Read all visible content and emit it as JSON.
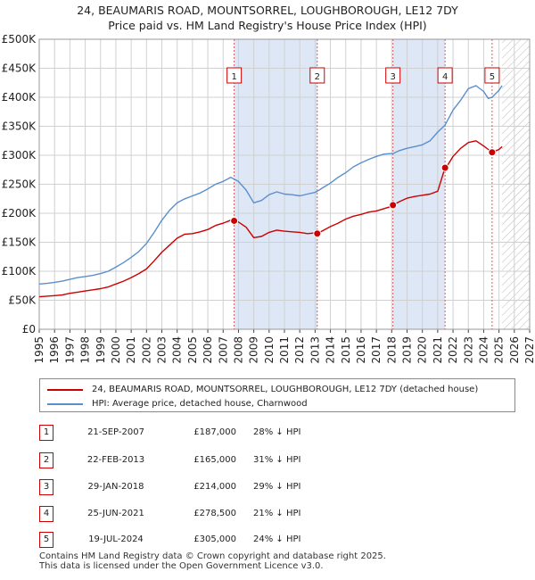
{
  "title_line1": "24, BEAUMARIS ROAD, MOUNTSORREL, LOUGHBOROUGH, LE12 7DY",
  "title_line2": "Price paid vs. HM Land Registry's House Price Index (HPI)",
  "legend": {
    "property": "24, BEAUMARIS ROAD, MOUNTSORREL, LOUGHBOROUGH, LE12 7DY (detached house)",
    "hpi": "HPI: Average price, detached house, Charnwood"
  },
  "colors": {
    "property": "#cc0000",
    "hpi": "#5b8fcc",
    "shade": "#dde7f6",
    "grid": "#d0d0d0"
  },
  "sales": [
    {
      "num": "1",
      "date": "21-SEP-2007",
      "price": "£187,000",
      "hpi": "28% ↓ HPI"
    },
    {
      "num": "2",
      "date": "22-FEB-2013",
      "price": "£165,000",
      "hpi": "31% ↓ HPI"
    },
    {
      "num": "3",
      "date": "29-JAN-2018",
      "price": "£214,000",
      "hpi": "29% ↓ HPI"
    },
    {
      "num": "4",
      "date": "25-JUN-2021",
      "price": "£278,500",
      "hpi": "21% ↓ HPI"
    },
    {
      "num": "5",
      "date": "19-JUL-2024",
      "price": "£305,000",
      "hpi": "24% ↓ HPI"
    }
  ],
  "footer_line1": "Contains HM Land Registry data © Crown copyright and database right 2025.",
  "footer_line2": "This data is licensed under the Open Government Licence v3.0.",
  "chart_data": {
    "type": "line",
    "xlim": [
      1995,
      2027
    ],
    "ylim": [
      0,
      500000
    ],
    "x_ticks": [
      "1995",
      "1996",
      "1997",
      "1998",
      "1999",
      "2000",
      "2001",
      "2002",
      "2003",
      "2004",
      "2005",
      "2006",
      "2007",
      "2008",
      "2009",
      "2010",
      "2011",
      "2012",
      "2013",
      "2014",
      "2015",
      "2016",
      "2017",
      "2018",
      "2019",
      "2020",
      "2021",
      "2022",
      "2023",
      "2024",
      "2025",
      "2026",
      "2027"
    ],
    "y_ticks": [
      {
        "value": 0,
        "label": "£0"
      },
      {
        "value": 50000,
        "label": "£50K"
      },
      {
        "value": 100000,
        "label": "£100K"
      },
      {
        "value": 150000,
        "label": "£150K"
      },
      {
        "value": 200000,
        "label": "£200K"
      },
      {
        "value": 250000,
        "label": "£250K"
      },
      {
        "value": 300000,
        "label": "£300K"
      },
      {
        "value": 350000,
        "label": "£350K"
      },
      {
        "value": 400000,
        "label": "£400K"
      },
      {
        "value": 450000,
        "label": "£450K"
      },
      {
        "value": 500000,
        "label": "£500K"
      }
    ],
    "shaded_periods": [
      [
        2007.72,
        2013.14
      ],
      [
        2018.08,
        2021.48
      ]
    ],
    "future_hatch_start": 2025.2,
    "series": [
      {
        "name": "HPI: Average price, detached house, Charnwood",
        "x": [
          1995,
          1995.5,
          1996,
          1996.5,
          1997,
          1997.5,
          1998,
          1998.5,
          1999,
          1999.5,
          2000,
          2000.5,
          2001,
          2001.5,
          2002,
          2002.5,
          2003,
          2003.5,
          2004,
          2004.5,
          2005,
          2005.5,
          2006,
          2006.5,
          2007,
          2007.5,
          2007.72,
          2008,
          2008.5,
          2009,
          2009.5,
          2010,
          2010.5,
          2011,
          2011.5,
          2012,
          2012.5,
          2013,
          2013.14,
          2013.5,
          2014,
          2014.5,
          2015,
          2015.5,
          2016,
          2016.5,
          2017,
          2017.5,
          2018,
          2018.08,
          2018.5,
          2019,
          2019.5,
          2020,
          2020.5,
          2021,
          2021.48,
          2021.7,
          2022,
          2022.5,
          2023,
          2023.5,
          2024,
          2024.3,
          2024.55,
          2025,
          2025.2
        ],
        "values": [
          78000,
          79000,
          81000,
          83000,
          86000,
          89000,
          91000,
          93000,
          96000,
          100000,
          107000,
          115000,
          124000,
          134000,
          148000,
          167000,
          188000,
          205000,
          218000,
          225000,
          230000,
          235000,
          242000,
          250000,
          255000,
          262000,
          259000,
          255000,
          240000,
          218000,
          222000,
          232000,
          237000,
          233000,
          232000,
          230000,
          233000,
          236000,
          238000,
          244000,
          252000,
          262000,
          270000,
          280000,
          287000,
          293000,
          298000,
          302000,
          303000,
          303000,
          308000,
          312000,
          315000,
          318000,
          325000,
          340000,
          352000,
          363000,
          378000,
          395000,
          415000,
          420000,
          410000,
          398000,
          400000,
          412000,
          420000
        ]
      },
      {
        "name": "24, BEAUMARIS ROAD, MOUNTSORREL, LOUGHBOROUGH, LE12 7DY (detached house)",
        "x": [
          1995,
          1995.5,
          1996,
          1996.5,
          1997,
          1997.5,
          1998,
          1998.5,
          1999,
          1999.5,
          2000,
          2000.5,
          2001,
          2001.5,
          2002,
          2002.5,
          2003,
          2003.5,
          2004,
          2004.5,
          2005,
          2005.5,
          2006,
          2006.5,
          2007,
          2007.5,
          2007.72,
          2008,
          2008.5,
          2009,
          2009.5,
          2010,
          2010.5,
          2011,
          2011.5,
          2012,
          2012.5,
          2013,
          2013.14,
          2013.5,
          2014,
          2014.5,
          2015,
          2015.5,
          2016,
          2016.5,
          2017,
          2017.5,
          2018,
          2018.08,
          2018.5,
          2019,
          2019.5,
          2020,
          2020.5,
          2021,
          2021.48,
          2021.7,
          2022,
          2022.5,
          2023,
          2023.5,
          2024,
          2024.3,
          2024.55,
          2025,
          2025.2
        ],
        "values": [
          56000,
          57000,
          58000,
          59000,
          62000,
          64000,
          66000,
          68000,
          70000,
          73000,
          78000,
          83000,
          89000,
          96000,
          104000,
          118000,
          133000,
          145000,
          157000,
          164000,
          165000,
          168000,
          172000,
          179000,
          183000,
          188000,
          187000,
          185000,
          176000,
          158000,
          160000,
          167000,
          171000,
          169000,
          168000,
          167000,
          165000,
          166000,
          165000,
          170000,
          177000,
          183000,
          190000,
          195000,
          198000,
          202000,
          204000,
          208000,
          212000,
          214000,
          220000,
          226000,
          229000,
          231000,
          233000,
          238000,
          278500,
          285000,
          298000,
          312000,
          322000,
          325000,
          316000,
          310000,
          305000,
          310000,
          315000
        ]
      }
    ],
    "sale_points": [
      {
        "label": "1",
        "x": 2007.72,
        "value": 187000
      },
      {
        "label": "2",
        "x": 2013.14,
        "value": 165000
      },
      {
        "label": "3",
        "x": 2018.08,
        "value": 214000
      },
      {
        "label": "4",
        "x": 2021.48,
        "value": 278500
      },
      {
        "label": "5",
        "x": 2024.55,
        "value": 305000
      }
    ]
  }
}
